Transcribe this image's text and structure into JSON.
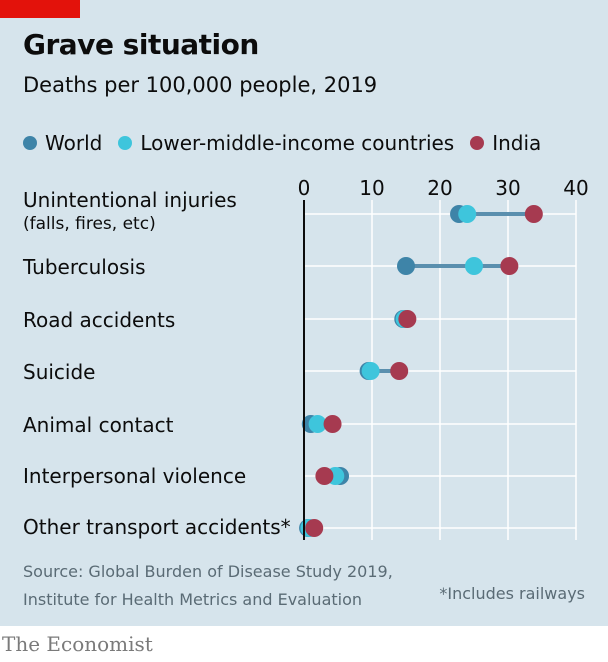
{
  "header": {
    "title": "Grave situation",
    "subtitle": "Deaths per 100,000 people, 2019"
  },
  "legend": [
    {
      "label": "World",
      "color": "#3e84a8"
    },
    {
      "label": "Lower-middle-income countries",
      "color": "#3ec5dc"
    },
    {
      "label": "India",
      "color": "#a63a50"
    }
  ],
  "chart_data": {
    "type": "scatter",
    "subtype": "dot-range",
    "x_ticks": [
      "0",
      "10",
      "20",
      "30",
      "40"
    ],
    "xlim": [
      0,
      40
    ],
    "categories": [
      {
        "label": "Unintentional injuries",
        "sublabel": "(falls, fires, etc)"
      },
      {
        "label": "Tuberculosis",
        "sublabel": ""
      },
      {
        "label": "Road accidents",
        "sublabel": ""
      },
      {
        "label": "Suicide",
        "sublabel": ""
      },
      {
        "label": "Animal contact",
        "sublabel": ""
      },
      {
        "label": "Interpersonal violence",
        "sublabel": ""
      },
      {
        "label": "Other transport accidents*",
        "sublabel": ""
      }
    ],
    "series": [
      {
        "name": "World",
        "color": "#3e84a8",
        "values": [
          22.8,
          15.0,
          14.6,
          9.5,
          1.0,
          5.3,
          0.6
        ]
      },
      {
        "name": "Lower-middle-income countries",
        "color": "#3ec5dc",
        "values": [
          24.0,
          25.0,
          14.8,
          9.8,
          2.0,
          4.6,
          0.8
        ]
      },
      {
        "name": "India",
        "color": "#a63a50",
        "values": [
          33.8,
          30.2,
          15.2,
          14.0,
          4.2,
          3.0,
          1.5
        ]
      }
    ],
    "range_line_color": "#5a8fae",
    "grid": true
  },
  "footer": {
    "source_line1": "Source: Global Burden of Disease Study 2019,",
    "source_line2": "Institute for Health Metrics and Evaluation",
    "note": "*Includes railways",
    "brand": "The Economist"
  },
  "colors": {
    "background": "#d6e4ec",
    "brand_red": "#e3120b",
    "gridline": "#ffffff",
    "axis": "#0c0c0c"
  }
}
